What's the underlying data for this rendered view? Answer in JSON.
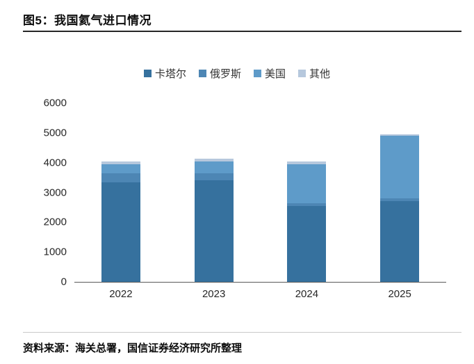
{
  "header": {
    "title": "图5：我国氦气进口情况"
  },
  "footer": {
    "source": "资料来源：海关总署，国信证券经济研究所整理"
  },
  "chart_data": {
    "type": "bar",
    "stacked": true,
    "title": "图5：我国氦气进口情况",
    "categories": [
      "2022",
      "2023",
      "2024",
      "2025"
    ],
    "series": [
      {
        "name": "卡塔尔",
        "color": "#36719e",
        "values": [
          3350,
          3400,
          2550,
          2700
        ]
      },
      {
        "name": "俄罗斯",
        "color": "#4d86b4",
        "values": [
          300,
          250,
          100,
          100
        ]
      },
      {
        "name": "美国",
        "color": "#5e9bc9",
        "values": [
          300,
          400,
          1300,
          2100
        ]
      },
      {
        "name": "其他",
        "color": "#b6c8dd",
        "values": [
          100,
          80,
          100,
          50
        ]
      }
    ],
    "ylim": [
      0,
      6000
    ],
    "yticks": [
      0,
      1000,
      2000,
      3000,
      4000,
      5000,
      6000
    ],
    "xlabel": "",
    "ylabel": "",
    "legend_position": "top",
    "grid": false
  }
}
